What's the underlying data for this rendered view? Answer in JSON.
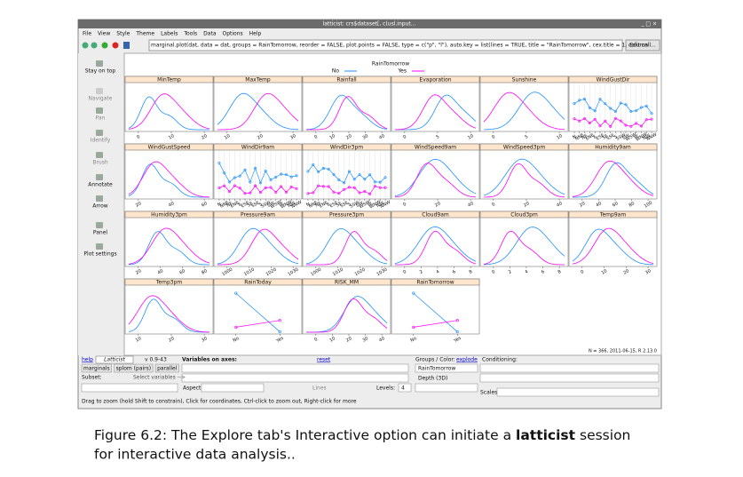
{
  "window": {
    "title": "latticist: crs$dataset[, c(usl.input...",
    "controls_title": "_ □ ×"
  },
  "menu": [
    "File",
    "View",
    "Style",
    "Theme",
    "Labels",
    "Tools",
    "Data",
    "Options",
    "Help"
  ],
  "toolbar": {
    "call": "marginal.plot(dat, data = dat, groups = RainTomorrow, reorder = FALSE, plot.points = FALSE, type = c(\"p\", \"l\"), auto.key = list(lines = TRUE, title = \"RainTomorrow\", cex.title = 1, column",
    "edit_button": "Edit call..."
  },
  "sidebar": [
    "Stay on top",
    "Navigate",
    "Pan",
    "Identify",
    "Brush",
    "Annotate",
    "Arrow",
    "Panel",
    "Plot settings"
  ],
  "plot": {
    "legend": {
      "title": "RainTomorrow",
      "items": [
        "No",
        "Yes"
      ]
    },
    "panels": [
      {
        "title": "MinTemp",
        "ticks": [
          "0",
          "10",
          "20"
        ]
      },
      {
        "title": "MaxTemp",
        "ticks": [
          "10",
          "20",
          "30"
        ]
      },
      {
        "title": "Rainfall",
        "ticks": [
          "0",
          "10",
          "20",
          "30",
          "40"
        ]
      },
      {
        "title": "Evaporation",
        "ticks": [
          "0",
          "5",
          "10"
        ]
      },
      {
        "title": "Sunshine",
        "ticks": [
          "0",
          "5",
          "10"
        ]
      },
      {
        "title": "WindGustDir",
        "ticks": [
          "N",
          "NNE",
          "NE",
          "ENE",
          "E",
          "ESE",
          "SE",
          "SSE",
          "S",
          "SSW",
          "SW",
          "WSW",
          "W",
          "WNW",
          "NW",
          "NNW"
        ]
      },
      {
        "title": "WindGustSpeed",
        "ticks": [
          "20",
          "40",
          "60"
        ]
      },
      {
        "title": "WindDir9am",
        "ticks": [
          "N",
          "NNE",
          "NE",
          "ENE",
          "E",
          "ESE",
          "SE",
          "SSE",
          "S",
          "SSW",
          "SW",
          "WSW",
          "W",
          "WNW",
          "NW",
          "NNW"
        ]
      },
      {
        "title": "WindDir3pm",
        "ticks": [
          "N",
          "NNE",
          "NE",
          "ENE",
          "E",
          "ESE",
          "SE",
          "SSE",
          "S",
          "SSW",
          "SW",
          "WSW",
          "W",
          "WNW",
          "NW",
          "NNW"
        ]
      },
      {
        "title": "WindSpeed9am",
        "ticks": [
          "0",
          "20",
          "40"
        ]
      },
      {
        "title": "WindSpeed3pm",
        "ticks": [
          "0",
          "20",
          "40"
        ]
      },
      {
        "title": "Humidity9am",
        "ticks": [
          "20",
          "40",
          "60",
          "80",
          "100"
        ]
      },
      {
        "title": "Humidity3pm",
        "ticks": [
          "20",
          "40",
          "60",
          "80"
        ]
      },
      {
        "title": "Pressure9am",
        "ticks": [
          "1000",
          "1010",
          "1020",
          "1030"
        ]
      },
      {
        "title": "Pressure3pm",
        "ticks": [
          "1000",
          "1010",
          "1020",
          "1030"
        ]
      },
      {
        "title": "Cloud9am",
        "ticks": [
          "0",
          "2",
          "4",
          "6",
          "8"
        ]
      },
      {
        "title": "Cloud3pm",
        "ticks": [
          "0",
          "2",
          "4",
          "6",
          "8"
        ]
      },
      {
        "title": "Temp9am",
        "ticks": [
          "0",
          "10",
          "20",
          "30"
        ]
      },
      {
        "title": "Temp3pm",
        "ticks": [
          "10",
          "20",
          "30"
        ]
      },
      {
        "title": "RainToday",
        "ticks": [
          "No",
          "Yes"
        ]
      },
      {
        "title": "RISK_MM",
        "ticks": [
          "0",
          "10",
          "20",
          "30",
          "40"
        ]
      },
      {
        "title": "RainTomorrow",
        "ticks": [
          "No",
          "Yes"
        ]
      }
    ],
    "footnote": "N = 366, 2011-06-15, R 2.13.0"
  },
  "controls": {
    "help": "help",
    "logo": "Latticist",
    "version": "v 0.9-43",
    "axes_label": "Variables on axes:",
    "reset": "reset",
    "groups_label": "Groups / Color:",
    "explode": "explode",
    "conditioning_label": "Conditioning:",
    "buttons": [
      "marginals",
      "splom (pairs)",
      "parallel"
    ],
    "subset_label": "Subset:",
    "select_variables": "Select variables -->",
    "groups_value": "RainTomorrow",
    "depth": "Depth (3D)",
    "aspect": "Aspect:",
    "lines": "Lines",
    "levels_label": "Levels:",
    "levels_value": "4",
    "scales": "Scales:"
  },
  "status": "Drag to zoom (hold Shift to constrain), Click for coordinates, Ctrl-click to zoom out, Right-click for more",
  "caption": {
    "line1_start": "Figure 6.2: The Explore tab's Interactive option can initiate a",
    "bold": "latticist",
    "line1_end": "session",
    "line2": "for interactive data analysis.."
  }
}
